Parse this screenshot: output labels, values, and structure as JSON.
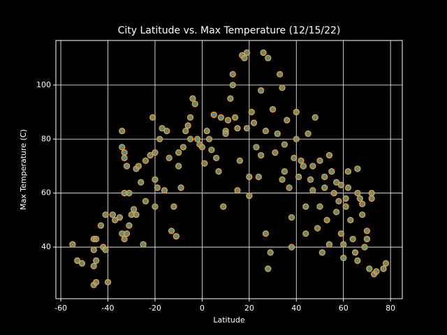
{
  "chart_data": {
    "type": "scatter",
    "title": "City Latitude vs. Max Temperature (12/15/22)",
    "x_label": "Latitude",
    "y_label": "Max Temperature (C)",
    "xlim": [
      -62.1,
      85.0
    ],
    "ylim": [
      20.9,
      116.5
    ],
    "xticks": [
      -60,
      -40,
      -20,
      0,
      20,
      40,
      60,
      80
    ],
    "yticks": [
      40,
      60,
      80,
      100
    ],
    "grid": true,
    "color": "#7a9e8c",
    "edge_color": "#e8a030",
    "x": [
      -55,
      -53,
      -51,
      -46,
      -46,
      -45,
      -46,
      -45,
      -46,
      -45,
      -43,
      -42,
      -41,
      -40,
      -41,
      -38,
      -37,
      -35,
      -34,
      -34,
      -33,
      -33,
      -32,
      -33,
      -31,
      -34,
      -33,
      -32,
      -31,
      -30,
      -29,
      -28,
      -28,
      -27,
      -26,
      -25,
      -24,
      -24,
      -22,
      -21,
      -20,
      -20,
      -20,
      -19,
      -18,
      -17,
      -16,
      -15,
      -14,
      -13,
      -12,
      -11,
      -10,
      -9,
      -8,
      -7,
      -6,
      -5,
      -4,
      -3,
      -2,
      -1,
      0,
      1,
      2,
      3,
      4,
      5,
      6,
      7,
      8,
      9,
      10,
      11,
      12,
      13,
      13,
      14,
      15,
      15,
      16,
      17,
      18,
      19,
      19,
      20,
      20,
      21,
      22,
      23,
      24,
      25,
      26,
      27,
      27,
      28,
      28,
      29,
      30,
      31,
      32,
      33,
      34,
      34,
      35,
      36,
      37,
      38,
      38,
      39,
      40,
      40,
      41,
      42,
      43,
      44,
      45,
      46,
      47,
      48,
      49,
      50,
      50,
      51,
      52,
      53,
      54,
      54,
      55,
      56,
      57,
      58,
      59,
      59,
      60,
      60,
      61,
      61,
      62,
      63,
      64,
      65,
      66,
      66,
      67,
      68,
      68,
      69,
      70,
      70,
      71,
      72,
      72,
      73,
      74,
      77,
      78,
      66,
      44,
      35,
      25,
      10,
      -5,
      -10,
      47,
      52,
      57,
      62
    ],
    "y": [
      41,
      35,
      34,
      39,
      43,
      43,
      33,
      35,
      26,
      27,
      48,
      40,
      39,
      27,
      52,
      52,
      50,
      51,
      83,
      77,
      75,
      73,
      70,
      60,
      60,
      45,
      43,
      45,
      48,
      52,
      54,
      52,
      69,
      70,
      64,
      41,
      57,
      72,
      74,
      88,
      75,
      55,
      65,
      62,
      80,
      84,
      61,
      83,
      73,
      46,
      55,
      44,
      70,
      62,
      77,
      83,
      85,
      88,
      95,
      93,
      80,
      78,
      77,
      71,
      83,
      80,
      76,
      89,
      73,
      68,
      88,
      55,
      83,
      87,
      95,
      100,
      104,
      88,
      84,
      61,
      72,
      111,
      110,
      112,
      84,
      59,
      66,
      90,
      86,
      77,
      66,
      98,
      112,
      83,
      45,
      32,
      110,
      38,
      91,
      75,
      82,
      104,
      99,
      65,
      78,
      87,
      62,
      40,
      51,
      73,
      90,
      80,
      66,
      72,
      70,
      45,
      82,
      65,
      61,
      88,
      47,
      72,
      55,
      38,
      62,
      50,
      74,
      41,
      68,
      60,
      53,
      57,
      63,
      45,
      41,
      36,
      58,
      55,
      68,
      50,
      43,
      38,
      69,
      35,
      58,
      56,
      52,
      40,
      46,
      43,
      32,
      60,
      58,
      30,
      31,
      32,
      34,
      60,
      55,
      68,
      74,
      82,
      80,
      75,
      70,
      66,
      64,
      62
    ]
  }
}
